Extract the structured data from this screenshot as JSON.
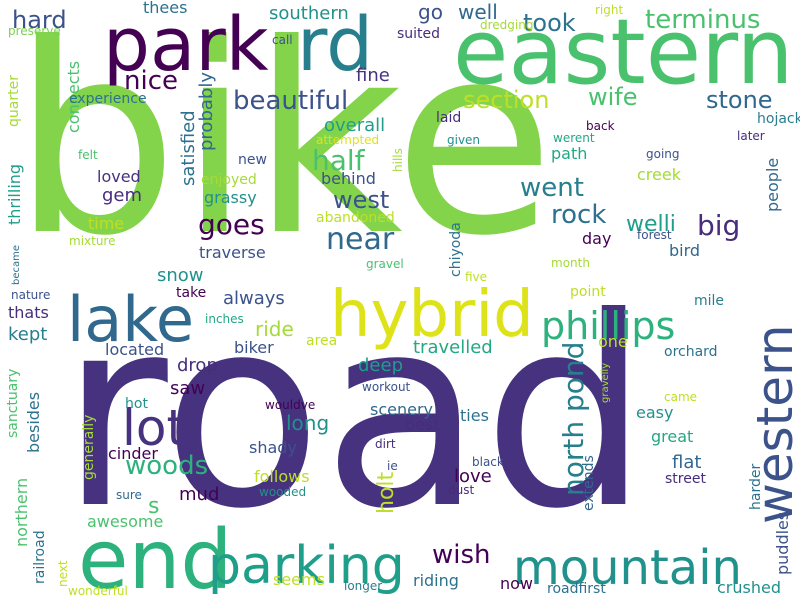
{
  "words": [
    {
      "text": "bike",
      "color": "#84d44b",
      "vertical": false
    },
    {
      "text": "road",
      "color": "#46327e",
      "vertical": false
    },
    {
      "text": "park",
      "color": "#440154",
      "vertical": false
    },
    {
      "text": "rd",
      "color": "#277f8e",
      "vertical": false
    },
    {
      "text": "eastern",
      "color": "#4ac16d",
      "vertical": false
    },
    {
      "text": "lake",
      "color": "#31688e",
      "vertical": false
    },
    {
      "text": "hybrid",
      "color": "#dde318",
      "vertical": false
    },
    {
      "text": "end",
      "color": "#2db27d",
      "vertical": false
    },
    {
      "text": "parking",
      "color": "#1f9e89",
      "vertical": false
    },
    {
      "text": "mountain",
      "color": "#21918c",
      "vertical": false
    },
    {
      "text": "western",
      "color": "#3b528b",
      "vertical": true
    },
    {
      "text": "lot",
      "color": "#46327e",
      "vertical": false
    },
    {
      "text": "phillips",
      "color": "#2db27d",
      "vertical": false
    },
    {
      "text": "north pond",
      "color": "#277f8e",
      "vertical": true
    },
    {
      "text": "terminus",
      "color": "#4ac16d",
      "vertical": false
    },
    {
      "text": "beautiful",
      "color": "#3b528b",
      "vertical": false
    },
    {
      "text": "nice",
      "color": "#440154",
      "vertical": false
    },
    {
      "text": "hard",
      "color": "#3b528b",
      "vertical": false
    },
    {
      "text": "took",
      "color": "#2c728e",
      "vertical": false
    },
    {
      "text": "section",
      "color": "#bddf26",
      "vertical": false
    },
    {
      "text": "wife",
      "color": "#4ac16d",
      "vertical": false
    },
    {
      "text": "stone",
      "color": "#31688e",
      "vertical": false
    },
    {
      "text": "half",
      "color": "#4ac16d",
      "vertical": false
    },
    {
      "text": "went",
      "color": "#277f8e",
      "vertical": false
    },
    {
      "text": "goes",
      "color": "#440154",
      "vertical": false
    },
    {
      "text": "near",
      "color": "#31688e",
      "vertical": false
    },
    {
      "text": "west",
      "color": "#3b528b",
      "vertical": false
    },
    {
      "text": "rock",
      "color": "#2c728e",
      "vertical": false
    },
    {
      "text": "big",
      "color": "#472d7b",
      "vertical": false
    },
    {
      "text": "woods",
      "color": "#2db27d",
      "vertical": false
    },
    {
      "text": "wish",
      "color": "#440154",
      "vertical": false
    },
    {
      "text": "southern",
      "color": "#21918c",
      "vertical": false
    },
    {
      "text": "go",
      "color": "#3b528b",
      "vertical": false
    },
    {
      "text": "well",
      "color": "#31688e",
      "vertical": false
    },
    {
      "text": "thees",
      "color": "#2c728e",
      "vertical": false
    },
    {
      "text": "call",
      "color": "#3b528b",
      "vertical": false
    },
    {
      "text": "suited",
      "color": "#472d7b",
      "vertical": false
    },
    {
      "text": "dredging",
      "color": "#a5db36",
      "vertical": false
    },
    {
      "text": "right",
      "color": "#bddf26",
      "vertical": false
    },
    {
      "text": "preserve",
      "color": "#7ad151",
      "vertical": false
    },
    {
      "text": "connects",
      "color": "#4ac16d",
      "vertical": true
    },
    {
      "text": "fine",
      "color": "#46327e",
      "vertical": false
    },
    {
      "text": "experience",
      "color": "#2c728e",
      "vertical": false
    },
    {
      "text": "probably",
      "color": "#31688e",
      "vertical": true
    },
    {
      "text": "overall",
      "color": "#1f9e89",
      "vertical": false
    },
    {
      "text": "laid",
      "color": "#472d7b",
      "vertical": false
    },
    {
      "text": "given",
      "color": "#21918c",
      "vertical": false
    },
    {
      "text": "attempted",
      "color": "#dde318",
      "vertical": false
    },
    {
      "text": "werent",
      "color": "#22a884",
      "vertical": false
    },
    {
      "text": "back",
      "color": "#440154",
      "vertical": false
    },
    {
      "text": "hojack",
      "color": "#277f8e",
      "vertical": false
    },
    {
      "text": "later",
      "color": "#472d7b",
      "vertical": false
    },
    {
      "text": "quarter",
      "color": "#a5db36",
      "vertical": true
    },
    {
      "text": "satisfied",
      "color": "#2c728e",
      "vertical": true
    },
    {
      "text": "felt",
      "color": "#4ac16d",
      "vertical": false
    },
    {
      "text": "loved",
      "color": "#46327e",
      "vertical": false
    },
    {
      "text": "new",
      "color": "#3b528b",
      "vertical": false
    },
    {
      "text": "enjoyed",
      "color": "#a5db36",
      "vertical": false
    },
    {
      "text": "behind",
      "color": "#3b528b",
      "vertical": false
    },
    {
      "text": "hills",
      "color": "#a5db36",
      "vertical": true
    },
    {
      "text": "path",
      "color": "#22a884",
      "vertical": false
    },
    {
      "text": "going",
      "color": "#3b528b",
      "vertical": false
    },
    {
      "text": "creek",
      "color": "#a5db36",
      "vertical": false
    },
    {
      "text": "people",
      "color": "#31688e",
      "vertical": true
    },
    {
      "text": "gem",
      "color": "#472d7b",
      "vertical": false
    },
    {
      "text": "grassy",
      "color": "#21918c",
      "vertical": false
    },
    {
      "text": "abandoned",
      "color": "#bddf26",
      "vertical": false
    },
    {
      "text": "thrilling",
      "color": "#1f9e89",
      "vertical": true
    },
    {
      "text": "time",
      "color": "#bddf26",
      "vertical": false
    },
    {
      "text": "mixture",
      "color": "#a5db36",
      "vertical": false
    },
    {
      "text": "chiyoda",
      "color": "#2c728e",
      "vertical": true
    },
    {
      "text": "day",
      "color": "#440154",
      "vertical": false
    },
    {
      "text": "welli",
      "color": "#1f9e89",
      "vertical": false
    },
    {
      "text": "forest",
      "color": "#3b528b",
      "vertical": false
    },
    {
      "text": "bird",
      "color": "#31688e",
      "vertical": false
    },
    {
      "text": "traverse",
      "color": "#3b528b",
      "vertical": false
    },
    {
      "text": "became",
      "color": "#2c728e",
      "vertical": true
    },
    {
      "text": "snow",
      "color": "#21918c",
      "vertical": false
    },
    {
      "text": "gravel",
      "color": "#4ac16d",
      "vertical": false
    },
    {
      "text": "month",
      "color": "#a5db36",
      "vertical": false
    },
    {
      "text": "nature",
      "color": "#3b528b",
      "vertical": false
    },
    {
      "text": "take",
      "color": "#440154",
      "vertical": false
    },
    {
      "text": "always",
      "color": "#3b528b",
      "vertical": false
    },
    {
      "text": "five",
      "color": "#bddf26",
      "vertical": false
    },
    {
      "text": "point",
      "color": "#bddf26",
      "vertical": false
    },
    {
      "text": "mile",
      "color": "#277f8e",
      "vertical": false
    },
    {
      "text": "thats",
      "color": "#472d7b",
      "vertical": false
    },
    {
      "text": "inches",
      "color": "#22a884",
      "vertical": false
    },
    {
      "text": "ride",
      "color": "#a5db36",
      "vertical": false
    },
    {
      "text": "area",
      "color": "#bddf26",
      "vertical": false
    },
    {
      "text": "kept",
      "color": "#277f8e",
      "vertical": false
    },
    {
      "text": "travelled",
      "color": "#22a884",
      "vertical": false
    },
    {
      "text": "one",
      "color": "#bddf26",
      "vertical": false
    },
    {
      "text": "orchard",
      "color": "#2c728e",
      "vertical": false
    },
    {
      "text": "biker",
      "color": "#3b528b",
      "vertical": false
    },
    {
      "text": "located",
      "color": "#3b528b",
      "vertical": false
    },
    {
      "text": "drop",
      "color": "#472d7b",
      "vertical": false
    },
    {
      "text": "deep",
      "color": "#1f9e89",
      "vertical": false
    },
    {
      "text": "sanctuary",
      "color": "#4ac16d",
      "vertical": true
    },
    {
      "text": "saw",
      "color": "#440154",
      "vertical": false
    },
    {
      "text": "workout",
      "color": "#3b528b",
      "vertical": false
    },
    {
      "text": "gravelly",
      "color": "#a5db36",
      "vertical": true
    },
    {
      "text": "came",
      "color": "#bddf26",
      "vertical": false
    },
    {
      "text": "hot",
      "color": "#21918c",
      "vertical": false
    },
    {
      "text": "wouldve",
      "color": "#440154",
      "vertical": false
    },
    {
      "text": "scenery",
      "color": "#31688e",
      "vertical": false
    },
    {
      "text": "ties",
      "color": "#2c728e",
      "vertical": false
    },
    {
      "text": "easy",
      "color": "#21918c",
      "vertical": false
    },
    {
      "text": "besides",
      "color": "#2c728e",
      "vertical": true
    },
    {
      "text": "long",
      "color": "#21918c",
      "vertical": false
    },
    {
      "text": "best",
      "color": "#472d7b",
      "vertical": false
    },
    {
      "text": "generally",
      "color": "#a5db36",
      "vertical": true
    },
    {
      "text": "shady",
      "color": "#3b528b",
      "vertical": false
    },
    {
      "text": "dirt",
      "color": "#472d7b",
      "vertical": false
    },
    {
      "text": "great",
      "color": "#22a884",
      "vertical": false
    },
    {
      "text": "cinder",
      "color": "#440154",
      "vertical": false
    },
    {
      "text": "holt",
      "color": "#bddf26",
      "vertical": true
    },
    {
      "text": "flat",
      "color": "#31688e",
      "vertical": false
    },
    {
      "text": "ie",
      "color": "#3b528b",
      "vertical": false
    },
    {
      "text": "black",
      "color": "#3b528b",
      "vertical": false
    },
    {
      "text": "extends",
      "color": "#31688e",
      "vertical": true
    },
    {
      "text": "follows",
      "color": "#bddf26",
      "vertical": false
    },
    {
      "text": "love",
      "color": "#440154",
      "vertical": false
    },
    {
      "text": "street",
      "color": "#472d7b",
      "vertical": false
    },
    {
      "text": "harder",
      "color": "#2c728e",
      "vertical": true
    },
    {
      "text": "northern",
      "color": "#4ac16d",
      "vertical": true
    },
    {
      "text": "sure",
      "color": "#31688e",
      "vertical": false
    },
    {
      "text": "wooded",
      "color": "#21918c",
      "vertical": false
    },
    {
      "text": "dust",
      "color": "#472d7b",
      "vertical": false
    },
    {
      "text": "mud",
      "color": "#440154",
      "vertical": false
    },
    {
      "text": "s",
      "color": "#4ac16d",
      "vertical": false
    },
    {
      "text": "awesome",
      "color": "#4ac16d",
      "vertical": false
    },
    {
      "text": "railroad",
      "color": "#2c728e",
      "vertical": true
    },
    {
      "text": "next",
      "color": "#bddf26",
      "vertical": true
    },
    {
      "text": "seems",
      "color": "#bddf26",
      "vertical": false
    },
    {
      "text": "riding",
      "color": "#2c728e",
      "vertical": false
    },
    {
      "text": "now",
      "color": "#440154",
      "vertical": false
    },
    {
      "text": "puddles",
      "color": "#3b528b",
      "vertical": true
    },
    {
      "text": "wonderful",
      "color": "#bddf26",
      "vertical": false
    },
    {
      "text": "longer",
      "color": "#277f8e",
      "vertical": false
    },
    {
      "text": "roadfirst",
      "color": "#2c728e",
      "vertical": false
    },
    {
      "text": "crushed",
      "color": "#21918c",
      "vertical": false
    }
  ]
}
